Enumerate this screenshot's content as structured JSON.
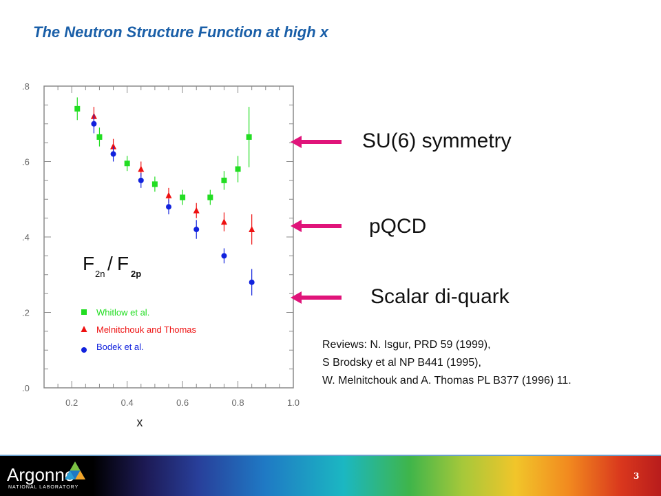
{
  "slide": {
    "title": "The Neutron Structure Function at high x",
    "page_number": "3"
  },
  "annotations": [
    {
      "text": "SU(6) symmetry"
    },
    {
      "text": "pQCD"
    },
    {
      "text": "Scalar di-quark"
    }
  ],
  "references": [
    "Reviews:  N. Isgur, PRD 59 (1999),",
    "S Brodsky et al NP B441 (1995),",
    "W. Melnitchouk and A. Thomas PL B377 (1996) 11."
  ],
  "footer": {
    "logo_text": "Argonne",
    "logo_subtext": "NATIONAL LABORATORY"
  },
  "colors": {
    "title": "#1a5fa8",
    "arrow": "#e0147a",
    "whitlow": "#22dd22",
    "melnitchouk": "#ee1111",
    "bodek": "#1122dd"
  },
  "chart_data": {
    "type": "scatter",
    "xlabel": "x",
    "ylabel": "",
    "xlim": [
      0.1,
      1.0
    ],
    "ylim": [
      0.0,
      0.8
    ],
    "x_ticks": [
      "0.2",
      "0.4",
      "0.6",
      "0.8",
      "1.0"
    ],
    "y_ticks": [
      ".0",
      ".2",
      ".4",
      ".6",
      ".8"
    ],
    "y_tick_values": [
      0.0,
      0.2,
      0.4,
      0.6,
      0.8
    ],
    "x_tick_values": [
      0.2,
      0.4,
      0.6,
      0.8,
      1.0
    ],
    "ratio_label": {
      "main1": "F",
      "sub1": "2n",
      "slash": "/",
      "main2": "F",
      "sub2": "2p"
    },
    "series": [
      {
        "name": "Whitlow  et al.",
        "marker": "square",
        "points": [
          {
            "x": 0.22,
            "y": 0.74,
            "err": 0.03
          },
          {
            "x": 0.3,
            "y": 0.665,
            "err": 0.025
          },
          {
            "x": 0.4,
            "y": 0.595,
            "err": 0.02
          },
          {
            "x": 0.5,
            "y": 0.54,
            "err": 0.02
          },
          {
            "x": 0.6,
            "y": 0.505,
            "err": 0.02
          },
          {
            "x": 0.7,
            "y": 0.505,
            "err": 0.02
          },
          {
            "x": 0.75,
            "y": 0.55,
            "err": 0.025
          },
          {
            "x": 0.8,
            "y": 0.58,
            "err": 0.035
          },
          {
            "x": 0.84,
            "y": 0.665,
            "err": 0.08
          }
        ]
      },
      {
        "name": "Melnitchouk  and  Thomas",
        "marker": "triangle",
        "points": [
          {
            "x": 0.28,
            "y": 0.72,
            "err": 0.025
          },
          {
            "x": 0.35,
            "y": 0.64,
            "err": 0.02
          },
          {
            "x": 0.45,
            "y": 0.58,
            "err": 0.02
          },
          {
            "x": 0.55,
            "y": 0.51,
            "err": 0.02
          },
          {
            "x": 0.65,
            "y": 0.47,
            "err": 0.02
          },
          {
            "x": 0.75,
            "y": 0.44,
            "err": 0.025
          },
          {
            "x": 0.85,
            "y": 0.42,
            "err": 0.04
          }
        ]
      },
      {
        "name": "Bodek  et  al.",
        "marker": "circle",
        "points": [
          {
            "x": 0.28,
            "y": 0.7,
            "err": 0.025
          },
          {
            "x": 0.35,
            "y": 0.62,
            "err": 0.02
          },
          {
            "x": 0.45,
            "y": 0.55,
            "err": 0.02
          },
          {
            "x": 0.55,
            "y": 0.48,
            "err": 0.02
          },
          {
            "x": 0.65,
            "y": 0.42,
            "err": 0.025
          },
          {
            "x": 0.75,
            "y": 0.35,
            "err": 0.02
          },
          {
            "x": 0.85,
            "y": 0.28,
            "err": 0.035
          }
        ]
      }
    ]
  }
}
